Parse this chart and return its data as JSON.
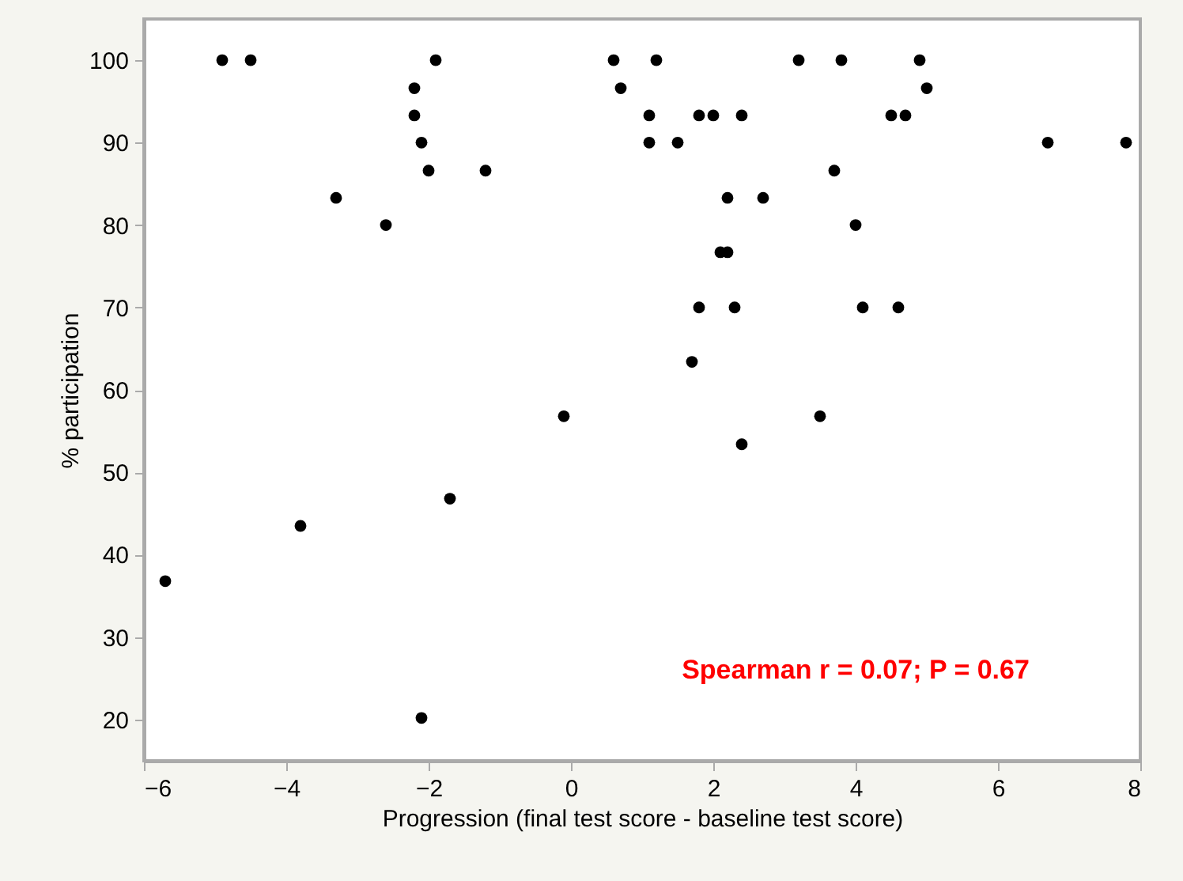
{
  "chart_data": {
    "type": "scatter",
    "xlabel": "Progression (final test score - baseline test score)",
    "ylabel": "% participation",
    "xlim": [
      -6,
      8
    ],
    "xticks": [
      -6,
      -4,
      -2,
      0,
      2,
      4,
      6,
      8
    ],
    "ylim": [
      15,
      105
    ],
    "yticks": [
      20,
      30,
      40,
      50,
      60,
      70,
      80,
      90,
      100
    ],
    "grid": false,
    "marker": "circle",
    "annotations": [
      "Spearman r = 0.07; P = 0.67"
    ],
    "series": [
      {
        "color": "#000000",
        "x": [
          -5.7,
          -3.8,
          -1.7,
          -2.1,
          -0.1,
          -4.9,
          -4.5,
          -1.9,
          -2.2,
          -2.2,
          -2.1,
          -2.0,
          -1.2,
          -3.3,
          -2.6,
          0.6,
          0.7,
          1.2,
          3.2,
          3.8,
          4.9,
          5.0,
          1.1,
          1.8,
          2.0,
          2.4,
          4.5,
          4.7,
          1.1,
          1.5,
          6.7,
          7.8,
          3.7,
          2.2,
          2.7,
          4.0,
          2.1,
          2.2,
          1.8,
          2.3,
          4.1,
          4.6,
          1.7,
          2.4,
          3.5
        ],
        "values": [
          36.8,
          43.5,
          46.8,
          20.2,
          56.8,
          100,
          100,
          100,
          96.6,
          93.3,
          90,
          86.6,
          86.6,
          83.3,
          80,
          100,
          96.6,
          100,
          100,
          100,
          100,
          96.6,
          93.3,
          93.3,
          93.3,
          93.3,
          93.3,
          93.3,
          90,
          90,
          90,
          90,
          86.6,
          83.3,
          83.3,
          80,
          76.7,
          76.7,
          70,
          70,
          70,
          70,
          63.4,
          53.4,
          56.8
        ]
      }
    ]
  }
}
